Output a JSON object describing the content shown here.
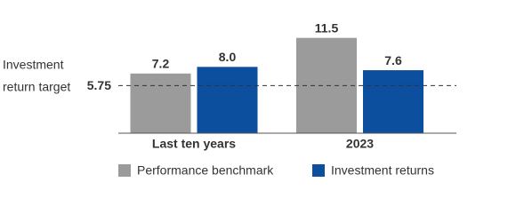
{
  "chart_data": {
    "type": "bar",
    "categories": [
      "Last ten years",
      "2023"
    ],
    "series": [
      {
        "name": "Performance benchmark",
        "color": "#9b9b9b",
        "values": [
          7.2,
          11.5
        ],
        "value_labels": [
          "7.2",
          "11.5"
        ]
      },
      {
        "name": "Investment returns",
        "color": "#0b4f9e",
        "values": [
          8.0,
          7.6
        ],
        "value_labels": [
          "8.0",
          "7.6"
        ]
      }
    ],
    "ylim": [
      0,
      12
    ],
    "reference_line": {
      "value": 5.75,
      "label": [
        "Investment",
        "return target"
      ]
    },
    "legend": "bottom"
  }
}
